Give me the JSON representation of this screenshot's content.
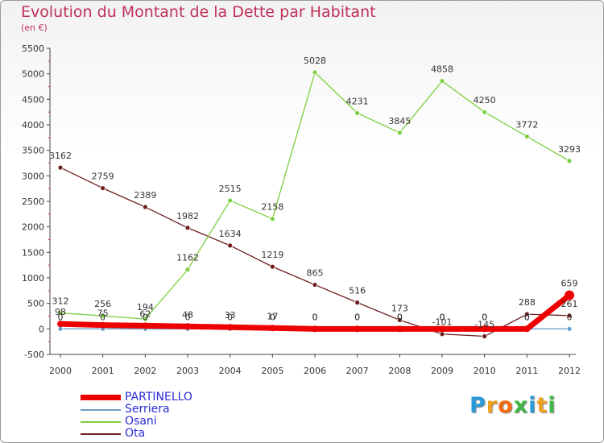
{
  "chart_data": {
    "type": "line",
    "title": "Evolution du Montant de la Dette par Habitant",
    "subtitle": "(en €)",
    "xlabel": "",
    "ylabel": "",
    "x": [
      "2000",
      "2001",
      "2002",
      "2003",
      "2004",
      "2005",
      "2006",
      "2007",
      "2008",
      "2009",
      "2010",
      "2011",
      "2012"
    ],
    "ylim": [
      -500,
      5500
    ],
    "yticks": [
      -500,
      0,
      500,
      1000,
      1500,
      2000,
      2500,
      3000,
      3500,
      4000,
      4500,
      5000,
      5500
    ],
    "grid": false,
    "legend_position": "bottom-left",
    "series": [
      {
        "name": "PARTINELLO",
        "color": "#ee0000",
        "values": [
          98,
          75,
          62,
          48,
          33,
          17,
          0,
          0,
          0,
          0,
          0,
          0,
          659
        ],
        "labels": [
          "98",
          "75",
          "62",
          "48",
          "33",
          "17",
          "0",
          "0",
          "0",
          "0",
          "0",
          "0",
          "659"
        ]
      },
      {
        "name": "Serriera",
        "color": "#6a9ec8",
        "values": [
          0,
          0,
          0,
          0,
          0,
          0,
          0,
          0,
          0,
          0,
          0,
          0,
          0
        ],
        "labels": [
          "0",
          "0",
          "0",
          "0",
          "0",
          "0",
          "0",
          "0",
          "0",
          "0",
          "0",
          "0",
          "0"
        ]
      },
      {
        "name": "Osani",
        "color": "#7ccf3e",
        "values": [
          312,
          256,
          194,
          1162,
          2515,
          2158,
          5028,
          4231,
          3845,
          4858,
          4250,
          3772,
          3293
        ],
        "labels": [
          "312",
          "256",
          "194",
          "1162",
          "2515",
          "2158",
          "5028",
          "4231",
          "3845",
          "4858",
          "4250",
          "3772",
          "3293"
        ]
      },
      {
        "name": "Ota",
        "color": "#6e1c1c",
        "values": [
          3162,
          2759,
          2389,
          1982,
          1634,
          1219,
          865,
          516,
          173,
          -101,
          -145,
          288,
          261
        ],
        "labels": [
          "3162",
          "2759",
          "2389",
          "1982",
          "1634",
          "1219",
          "865",
          "516",
          "173",
          "-101",
          "-145",
          "288",
          "261"
        ]
      }
    ]
  },
  "logo": {
    "text": "Proxiti",
    "colors": [
      "#2b9ad8",
      "#f0a020",
      "#f26a10",
      "#40b848",
      "#2b9ad8",
      "#f0a020",
      "#40b848"
    ]
  }
}
